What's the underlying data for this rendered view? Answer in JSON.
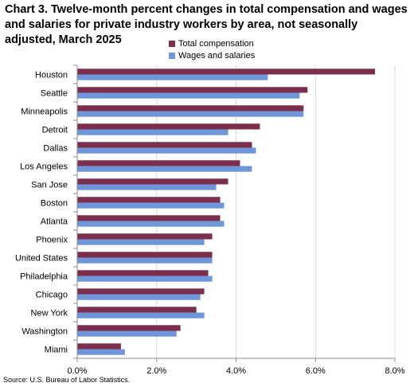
{
  "title": "Chart 3. Twelve-month percent changes in total compensation and wages and salaries for private industry workers by area, not seasonally adjusted, March 2025",
  "source": "Source: U.S. Bureau of Labor Statistics.",
  "colors": {
    "total_compensation": "#7b2f4c",
    "wages_and_salaries": "#6f96d8",
    "grid": "#d9d9d9",
    "axis": "#8c8c8c"
  },
  "chart_data": {
    "type": "bar",
    "orientation": "horizontal",
    "categories": [
      "Houston",
      "Seattle",
      "Minneapolis",
      "Detroit",
      "Dallas",
      "Los Angeles",
      "San Jose",
      "Boston",
      "Atlanta",
      "Phoenix",
      "United States",
      "Philadelphia",
      "Chicago",
      "New York",
      "Washington",
      "Miami"
    ],
    "series": [
      {
        "name": "Total compensation",
        "color": "#7b2f4c",
        "values": [
          7.5,
          5.8,
          5.7,
          4.6,
          4.4,
          4.1,
          3.8,
          3.6,
          3.6,
          3.4,
          3.4,
          3.3,
          3.2,
          3.0,
          2.6,
          1.1
        ]
      },
      {
        "name": "Wages and salaries",
        "color": "#6f96d8",
        "values": [
          4.8,
          5.6,
          5.7,
          3.8,
          4.5,
          4.4,
          3.5,
          3.7,
          3.7,
          3.2,
          3.4,
          3.4,
          3.1,
          3.2,
          2.5,
          1.2
        ]
      }
    ],
    "x_ticks": [
      "0.0%",
      "2.0%",
      "4.0%",
      "6.0%",
      "8.0%"
    ],
    "xlim": [
      0,
      8
    ],
    "grid": true,
    "legend_position": "top-right"
  }
}
